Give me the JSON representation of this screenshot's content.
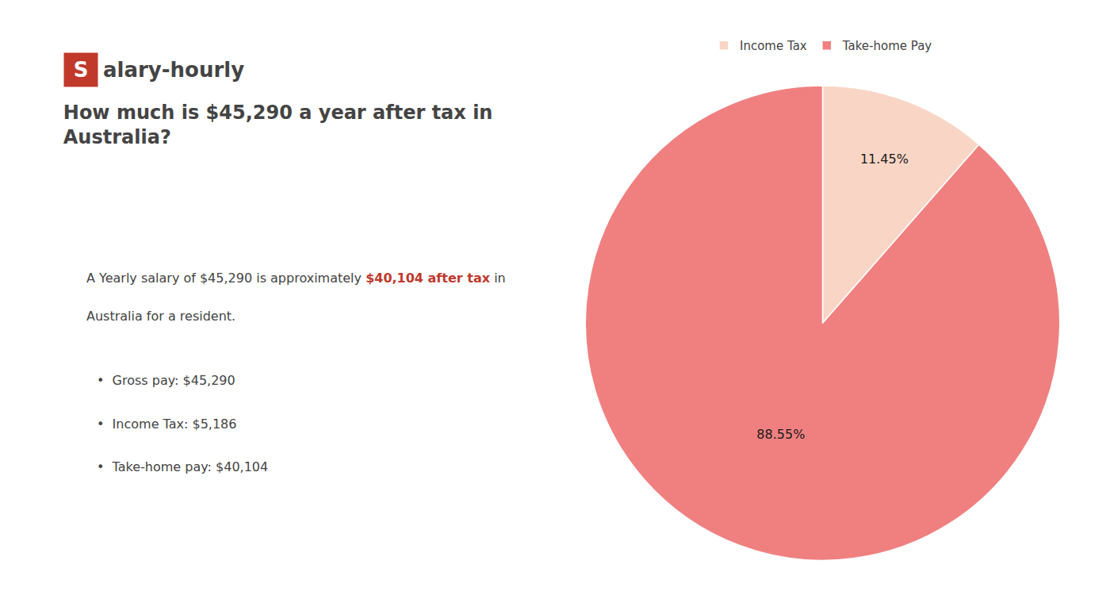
{
  "chart_data": {
    "type": "pie",
    "title": "How much is $45,290 a year after tax in\nAustralia?",
    "categories": [
      "Income Tax",
      "Take-home Pay"
    ],
    "values": [
      11.45,
      88.55
    ],
    "value_labels": [
      "11.45%",
      "88.55%"
    ],
    "colors": [
      "#f9d5c5",
      "#f08080"
    ],
    "data_labels": true,
    "legend": "top",
    "annotations": [
      {
        "text": "S",
        "color": "#c0392b"
      },
      {
        "text": "alary-hourly"
      },
      {
        "text": "A Yearly salary of $45,290 is approximately "
      },
      {
        "text": "$40,104 after tax",
        "color": "#c0392b"
      },
      {
        "text": " in"
      },
      {
        "text": "Australia for a resident."
      },
      {
        "text": "•  Gross pay: $45,290"
      },
      {
        "text": "•  Income Tax: $5,186"
      },
      {
        "text": "•  Take-home pay: $40,104"
      }
    ]
  }
}
